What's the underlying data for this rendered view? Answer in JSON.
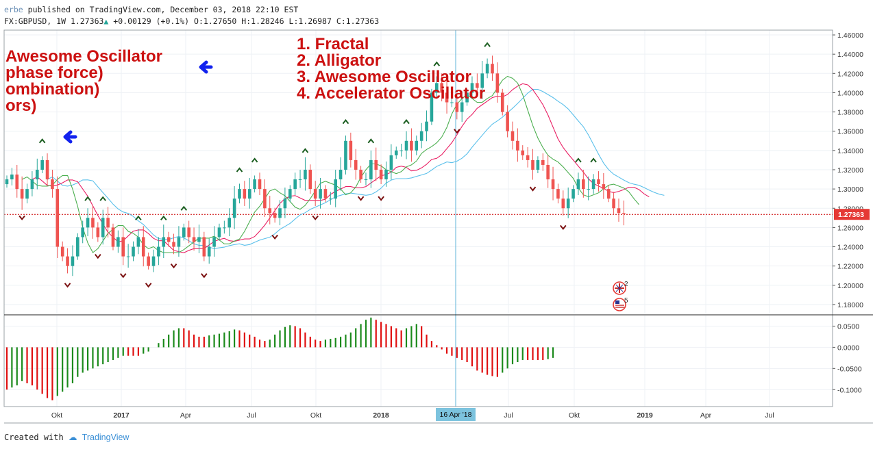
{
  "header": {
    "user": "erbe",
    "published_text": "published on TradingView.com, December 03, 2018 22:10 EST",
    "symbol": "FX:GBPUSD, 1W",
    "last": "1.27363",
    "change": "+0.00129 (+0.1%)",
    "open_label": "O:",
    "open": "1.27650",
    "high_label": "H:",
    "high": "1.28246",
    "low_label": "L:",
    "low": "1.26987",
    "close_label": "C:",
    "close": "1.27363"
  },
  "annotations": {
    "left_lines": [
      "Awesome Oscillator",
      "phase force)",
      "ombination)",
      "ors)"
    ],
    "center_lines": [
      "1. Fractal",
      "2. Alligator",
      "3. Awesome Oscillator",
      "4. Accelerator Oscillator"
    ]
  },
  "footer": {
    "created_with": "Created with",
    "brand": "TradingView"
  },
  "chart_data": {
    "type": "candlestick",
    "price_axis": {
      "ylim": [
        1.17,
        1.465
      ],
      "ticks": [
        "1.46000",
        "1.44000",
        "1.42000",
        "1.40000",
        "1.38000",
        "1.36000",
        "1.34000",
        "1.32000",
        "1.30000",
        "1.28000",
        "1.26000",
        "1.24000",
        "1.22000",
        "1.20000",
        "1.18000"
      ]
    },
    "osc_axis": {
      "ylim": [
        -0.14,
        0.075
      ],
      "ticks": [
        "0.0500",
        "0.0000",
        "-0.0500",
        "-0.1000"
      ]
    },
    "x_axis": {
      "labels": [
        "Okt",
        "2017",
        "Apr",
        "Jul",
        "Okt",
        "2018",
        "Jul",
        "Okt",
        "2019",
        "Apr",
        "Jul"
      ],
      "crosshair_label": "16 Apr '18"
    },
    "last_price_label": "1.27363",
    "last_price": 1.27363,
    "event_badges": [
      {
        "flag": "uk",
        "count": "2"
      },
      {
        "flag": "us",
        "count": "5"
      }
    ],
    "colors": {
      "up": "#26a69a",
      "down": "#ef5350",
      "jaw": "#5bc0eb",
      "teeth": "#e91e63",
      "lips": "#4caf50",
      "ao_up": "#1b8a1b",
      "ao_down": "#e01010",
      "price_line": "#cc0000",
      "crosshair": "#5fb3d9"
    },
    "series": [
      {
        "name": "GBPUSD weekly close",
        "values": [
          1.31,
          1.315,
          1.3,
          1.29,
          1.3,
          1.31,
          1.32,
          1.33,
          1.31,
          1.3,
          1.24,
          1.23,
          1.22,
          1.23,
          1.25,
          1.26,
          1.27,
          1.26,
          1.25,
          1.27,
          1.26,
          1.24,
          1.25,
          1.23,
          1.23,
          1.24,
          1.25,
          1.23,
          1.22,
          1.23,
          1.24,
          1.25,
          1.245,
          1.24,
          1.25,
          1.26,
          1.25,
          1.245,
          1.25,
          1.23,
          1.24,
          1.25,
          1.26,
          1.26,
          1.27,
          1.29,
          1.3,
          1.29,
          1.3,
          1.31,
          1.3,
          1.28,
          1.275,
          1.27,
          1.28,
          1.29,
          1.3,
          1.31,
          1.31,
          1.32,
          1.3,
          1.29,
          1.3,
          1.29,
          1.29,
          1.31,
          1.32,
          1.35,
          1.33,
          1.32,
          1.31,
          1.31,
          1.33,
          1.32,
          1.31,
          1.32,
          1.335,
          1.34,
          1.34,
          1.35,
          1.34,
          1.35,
          1.36,
          1.37,
          1.4,
          1.41,
          1.4,
          1.39,
          1.39,
          1.38,
          1.39,
          1.4,
          1.41,
          1.405,
          1.42,
          1.43,
          1.42,
          1.4,
          1.38,
          1.36,
          1.35,
          1.34,
          1.335,
          1.33,
          1.32,
          1.33,
          1.325,
          1.31,
          1.3,
          1.29,
          1.28,
          1.29,
          1.3,
          1.31,
          1.3,
          1.3,
          1.31,
          1.305,
          1.3,
          1.29,
          1.28,
          1.275,
          1.274
        ]
      },
      {
        "name": "AO",
        "values": [
          -0.1,
          -0.095,
          -0.09,
          -0.08,
          -0.085,
          -0.09,
          -0.1,
          -0.11,
          -0.12,
          -0.125,
          -0.115,
          -0.105,
          -0.095,
          -0.085,
          -0.07,
          -0.06,
          -0.055,
          -0.05,
          -0.045,
          -0.04,
          -0.035,
          -0.03,
          -0.025,
          -0.02,
          -0.02,
          -0.02,
          -0.02,
          -0.015,
          -0.01,
          0.0,
          0.01,
          0.02,
          0.03,
          0.04,
          0.045,
          0.045,
          0.04,
          0.03,
          0.025,
          0.025,
          0.028,
          0.03,
          0.032,
          0.035,
          0.038,
          0.042,
          0.04,
          0.035,
          0.03,
          0.025,
          0.018,
          0.015,
          0.018,
          0.03,
          0.04,
          0.048,
          0.052,
          0.05,
          0.045,
          0.035,
          0.025,
          0.018,
          0.015,
          0.018,
          0.02,
          0.022,
          0.025,
          0.03,
          0.035,
          0.045,
          0.055,
          0.065,
          0.07,
          0.065,
          0.06,
          0.055,
          0.05,
          0.045,
          0.04,
          0.045,
          0.05,
          0.055,
          0.05,
          0.03,
          0.015,
          0.005,
          -0.005,
          -0.015,
          -0.02,
          -0.025,
          -0.03,
          -0.035,
          -0.045,
          -0.055,
          -0.06,
          -0.065,
          -0.068,
          -0.07,
          -0.06,
          -0.05,
          -0.04,
          -0.035,
          -0.03,
          -0.03,
          -0.03,
          -0.03,
          -0.03,
          -0.028,
          -0.025
        ]
      }
    ]
  }
}
